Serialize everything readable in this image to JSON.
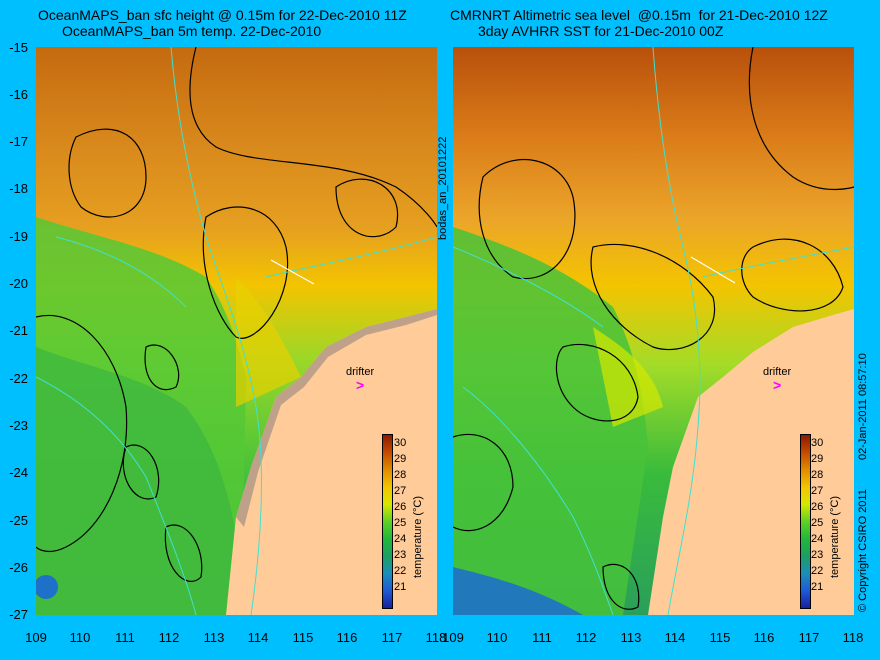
{
  "left_panel": {
    "title_line1": "OceanMAPS_ban sfc height @ 0.15m for 22-Dec-2010 11Z",
    "title_line2": "OceanMAPS_ban 5m temp. 22-Dec-2010"
  },
  "right_panel": {
    "title_line1": "CMRNRT Altimetric sea level  @0.15m  for 21-Dec-2010 12Z",
    "title_line2": "3day AVHRR SST for 21-Dec-2010 00Z"
  },
  "y_axis_labels": [
    "-15",
    "-16",
    "-17",
    "-18",
    "-19",
    "-20",
    "-21",
    "-22",
    "-23",
    "-24",
    "-25",
    "-26",
    "-27"
  ],
  "x_axis_labels": [
    "109",
    "110",
    "111",
    "112",
    "113",
    "114",
    "115",
    "116",
    "117",
    "118"
  ],
  "colorbar": {
    "label": "temperature (°C)",
    "ticks": [
      "30",
      "29",
      "28",
      "27",
      "26",
      "25",
      "24",
      "23",
      "22",
      "21"
    ],
    "colors": [
      "#8b1a00",
      "#c44a00",
      "#e08a00",
      "#f3c400",
      "#d6e800",
      "#5fd024",
      "#22b83a",
      "#1c9f63",
      "#1b8fb8",
      "#1e5ad6",
      "#19209c"
    ]
  },
  "drifter_label": "drifter",
  "drifter_marker": ">",
  "side_label_middle": "bodas_an_20101222",
  "side_label_right": "02-Jan-2011 08:57:10",
  "copyright": "© Copyright CSIRO 2011"
}
